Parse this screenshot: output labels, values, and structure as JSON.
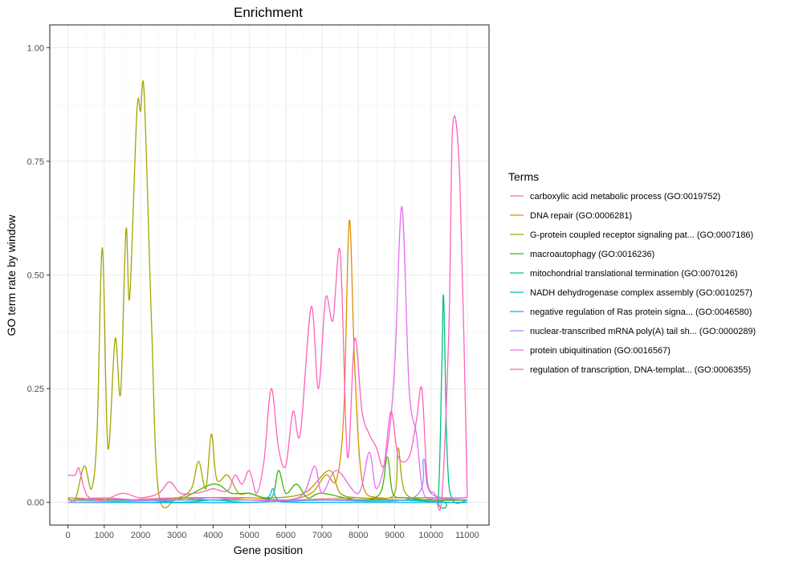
{
  "chart_data": {
    "type": "line",
    "title": "Enrichment",
    "xlabel": "Gene position",
    "ylabel": "GO term rate by window",
    "xlim": [
      -500,
      11600
    ],
    "ylim": [
      -0.05,
      1.05
    ],
    "xticks": [
      0,
      1000,
      2000,
      3000,
      4000,
      5000,
      6000,
      7000,
      8000,
      9000,
      10000,
      11000
    ],
    "yticks": [
      0.0,
      0.25,
      0.5,
      0.75,
      1.0
    ],
    "xtick_labels": [
      "0",
      "1000",
      "2000",
      "3000",
      "4000",
      "5000",
      "6000",
      "7000",
      "8000",
      "9000",
      "10000",
      "11000"
    ],
    "ytick_labels": [
      "0.00",
      "0.25",
      "0.50",
      "0.75",
      "1.00"
    ],
    "grid": true,
    "legend_title": "Terms",
    "legend_position": "right",
    "series": [
      {
        "name": "carboxylic acid metabolic process (GO:0019752)",
        "color": "#F8766D",
        "points": [
          [
            0,
            0.005
          ],
          [
            1500,
            0.005
          ],
          [
            3000,
            0.01
          ],
          [
            4000,
            0.005
          ],
          [
            5000,
            0.01
          ],
          [
            6000,
            0.005
          ],
          [
            8000,
            0.01
          ],
          [
            9000,
            0.005
          ],
          [
            11000,
            0.005
          ]
        ]
      },
      {
        "name": "DNA repair (GO:0006281)",
        "color": "#D89000",
        "points": [
          [
            0,
            0.01
          ],
          [
            2000,
            0.005
          ],
          [
            3500,
            0.01
          ],
          [
            5000,
            0.01
          ],
          [
            6000,
            0.005
          ],
          [
            6700,
            0.02
          ],
          [
            7100,
            0.06
          ],
          [
            7400,
            0.05
          ],
          [
            7600,
            0.2
          ],
          [
            7750,
            0.62
          ],
          [
            7900,
            0.3
          ],
          [
            8100,
            0.05
          ],
          [
            8500,
            0.01
          ],
          [
            9000,
            0.01
          ],
          [
            10000,
            0.01
          ],
          [
            11000,
            0.01
          ]
        ]
      },
      {
        "name": "G-protein coupled receptor signaling pat... (GO:0007186)",
        "color": "#A3A500",
        "points": [
          [
            0,
            0.01
          ],
          [
            200,
            0.005
          ],
          [
            450,
            0.08
          ],
          [
            650,
            0.03
          ],
          [
            800,
            0.15
          ],
          [
            950,
            0.56
          ],
          [
            1100,
            0.12
          ],
          [
            1300,
            0.36
          ],
          [
            1450,
            0.24
          ],
          [
            1600,
            0.6
          ],
          [
            1700,
            0.45
          ],
          [
            1900,
            0.86
          ],
          [
            2000,
            0.86
          ],
          [
            2100,
            0.9
          ],
          [
            2300,
            0.4
          ],
          [
            2500,
            0.02
          ],
          [
            3000,
            0.01
          ],
          [
            3400,
            0.03
          ],
          [
            3600,
            0.09
          ],
          [
            3800,
            0.03
          ],
          [
            3950,
            0.15
          ],
          [
            4100,
            0.05
          ],
          [
            4400,
            0.06
          ],
          [
            4700,
            0.02
          ],
          [
            5000,
            0.02
          ],
          [
            5500,
            0.01
          ],
          [
            6500,
            0.02
          ],
          [
            7200,
            0.07
          ],
          [
            7500,
            0.02
          ],
          [
            8000,
            0.01
          ],
          [
            8500,
            0.01
          ],
          [
            9000,
            0.02
          ],
          [
            9100,
            0.12
          ],
          [
            9300,
            0.02
          ],
          [
            10000,
            0.01
          ],
          [
            11000,
            0.005
          ]
        ]
      },
      {
        "name": "macroautophagy (GO:0016236)",
        "color": "#39B600",
        "points": [
          [
            0,
            0.005
          ],
          [
            2000,
            0.005
          ],
          [
            3000,
            0.005
          ],
          [
            4000,
            0.04
          ],
          [
            4500,
            0.02
          ],
          [
            5000,
            0.02
          ],
          [
            5600,
            0.01
          ],
          [
            5800,
            0.07
          ],
          [
            6000,
            0.02
          ],
          [
            6300,
            0.04
          ],
          [
            6600,
            0.01
          ],
          [
            7000,
            0.02
          ],
          [
            8000,
            0.005
          ],
          [
            8600,
            0.02
          ],
          [
            8800,
            0.1
          ],
          [
            8950,
            0.02
          ],
          [
            9300,
            0.01
          ],
          [
            10000,
            0.005
          ],
          [
            11000,
            0.005
          ]
        ]
      },
      {
        "name": "mitochondrial translational termination (GO:0070126)",
        "color": "#00BF7D",
        "points": [
          [
            0,
            0.005
          ],
          [
            5000,
            0.005
          ],
          [
            10000,
            0.005
          ],
          [
            10200,
            0.01
          ],
          [
            10300,
            0.3
          ],
          [
            10350,
            0.45
          ],
          [
            10450,
            0.1
          ],
          [
            10600,
            0.005
          ],
          [
            11000,
            0.005
          ]
        ]
      },
      {
        "name": "NADH dehydrogenase complex assembly (GO:0010257)",
        "color": "#00BFC4",
        "points": [
          [
            0,
            0.0
          ],
          [
            3000,
            0.0
          ],
          [
            4000,
            0.005
          ],
          [
            5000,
            0.0
          ],
          [
            7000,
            0.005
          ],
          [
            9000,
            0.005
          ],
          [
            10500,
            0.0
          ],
          [
            11000,
            0.0
          ]
        ]
      },
      {
        "name": "negative regulation of Ras protein signa... (GO:0046580)",
        "color": "#00B0F6",
        "points": [
          [
            0,
            0.0
          ],
          [
            5000,
            0.0
          ],
          [
            5500,
            0.01
          ],
          [
            5650,
            0.03
          ],
          [
            5800,
            0.005
          ],
          [
            6500,
            0.0
          ],
          [
            11000,
            0.0
          ]
        ]
      },
      {
        "name": "nuclear-transcribed mRNA poly(A) tail sh... (GO:0000289)",
        "color": "#9590FF",
        "points": [
          [
            0,
            0.0
          ],
          [
            3000,
            0.005
          ],
          [
            4000,
            0.01
          ],
          [
            5000,
            0.005
          ],
          [
            7000,
            0.005
          ],
          [
            9500,
            0.01
          ],
          [
            9800,
            0.095
          ],
          [
            10000,
            0.02
          ],
          [
            11000,
            0.005
          ]
        ]
      },
      {
        "name": "protein ubiquitination (GO:0016567)",
        "color": "#E76BF3",
        "points": [
          [
            0,
            0.005
          ],
          [
            1000,
            0.01
          ],
          [
            2000,
            0.005
          ],
          [
            3000,
            0.01
          ],
          [
            4000,
            0.01
          ],
          [
            5000,
            0.005
          ],
          [
            6000,
            0.005
          ],
          [
            6500,
            0.02
          ],
          [
            6800,
            0.08
          ],
          [
            7000,
            0.02
          ],
          [
            7400,
            0.07
          ],
          [
            8000,
            0.02
          ],
          [
            8300,
            0.11
          ],
          [
            8500,
            0.03
          ],
          [
            8800,
            0.12
          ],
          [
            9000,
            0.3
          ],
          [
            9200,
            0.65
          ],
          [
            9400,
            0.25
          ],
          [
            9600,
            0.15
          ],
          [
            9800,
            0.02
          ],
          [
            10200,
            0.01
          ],
          [
            10600,
            0.01
          ],
          [
            11000,
            0.01
          ]
        ]
      },
      {
        "name": "regulation of transcription, DNA-templat... (GO:0006355)",
        "color": "#FF62BC",
        "points": [
          [
            0,
            0.06
          ],
          [
            200,
            0.06
          ],
          [
            300,
            0.075
          ],
          [
            450,
            0.03
          ],
          [
            600,
            0.01
          ],
          [
            1000,
            0.005
          ],
          [
            1500,
            0.02
          ],
          [
            2000,
            0.01
          ],
          [
            2500,
            0.02
          ],
          [
            2800,
            0.045
          ],
          [
            3100,
            0.02
          ],
          [
            3500,
            0.02
          ],
          [
            3800,
            0.025
          ],
          [
            4000,
            0.03
          ],
          [
            4400,
            0.025
          ],
          [
            4600,
            0.06
          ],
          [
            4800,
            0.04
          ],
          [
            5000,
            0.07
          ],
          [
            5200,
            0.02
          ],
          [
            5400,
            0.09
          ],
          [
            5600,
            0.25
          ],
          [
            5800,
            0.12
          ],
          [
            6000,
            0.08
          ],
          [
            6200,
            0.2
          ],
          [
            6400,
            0.15
          ],
          [
            6700,
            0.43
          ],
          [
            6900,
            0.25
          ],
          [
            7100,
            0.45
          ],
          [
            7300,
            0.4
          ],
          [
            7500,
            0.55
          ],
          [
            7700,
            0.1
          ],
          [
            7900,
            0.36
          ],
          [
            8100,
            0.2
          ],
          [
            8300,
            0.15
          ],
          [
            8500,
            0.12
          ],
          [
            8700,
            0.08
          ],
          [
            8900,
            0.2
          ],
          [
            9100,
            0.1
          ],
          [
            9400,
            0.1
          ],
          [
            9600,
            0.18
          ],
          [
            9750,
            0.25
          ],
          [
            9900,
            0.05
          ],
          [
            10100,
            0.02
          ],
          [
            10300,
            0.01
          ],
          [
            10500,
            0.4
          ],
          [
            10600,
            0.83
          ],
          [
            10800,
            0.7
          ],
          [
            11000,
            0.01
          ]
        ]
      }
    ]
  }
}
